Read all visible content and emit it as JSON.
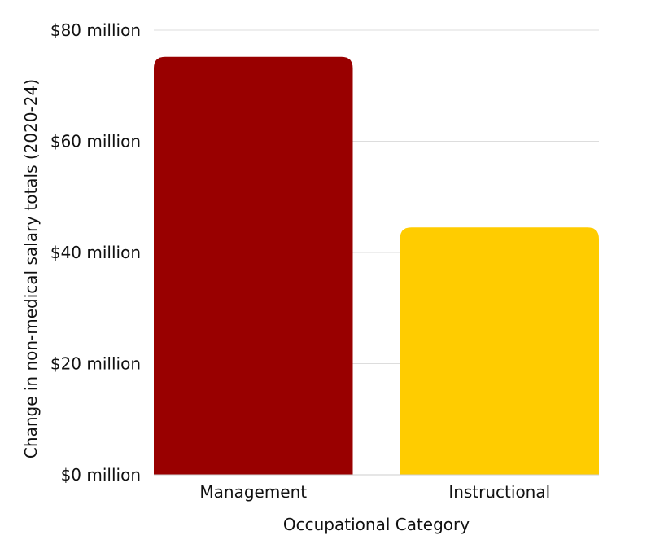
{
  "chart_data": {
    "type": "bar",
    "categories": [
      "Management",
      "Instructional"
    ],
    "values": [
      75.2,
      44.5
    ],
    "xlabel": "Occupational Category",
    "ylabel": "Change in non-medical salary totals (2020-24)",
    "ylim": [
      0,
      80
    ],
    "yticks": [
      0,
      20,
      40,
      60,
      80
    ],
    "ytick_labels": [
      "$0 million",
      "$20 million",
      "$40 million",
      "$60 million",
      "$80 million"
    ],
    "grid": true,
    "colors": [
      "#990000",
      "#ffcc00"
    ]
  }
}
